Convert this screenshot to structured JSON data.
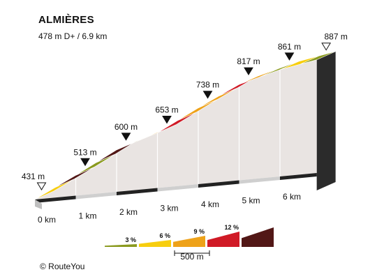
{
  "title": "ALMIÈRES",
  "subtitle": "478 m D+ / 6.9 km",
  "credit": "© RouteYou",
  "chart_data": {
    "type": "area",
    "title": "ALMIÈRES",
    "subtitle": "478 m D+ / 6.9 km",
    "x_unit": "km",
    "y_unit": "m",
    "xlim": [
      0,
      6.9
    ],
    "km_ticks": [
      {
        "km": 0,
        "label": "0 km"
      },
      {
        "km": 1,
        "label": "1 km"
      },
      {
        "km": 2,
        "label": "2 km"
      },
      {
        "km": 3,
        "label": "3 km"
      },
      {
        "km": 4,
        "label": "4 km"
      },
      {
        "km": 5,
        "label": "5 km"
      },
      {
        "km": 6,
        "label": "6 km"
      }
    ],
    "markers": [
      {
        "km": 0,
        "altitude": 431,
        "label": "431 m",
        "style": "open"
      },
      {
        "km": 1,
        "altitude": 513,
        "label": "513 m",
        "style": "filled"
      },
      {
        "km": 2,
        "altitude": 600,
        "label": "600 m",
        "style": "filled"
      },
      {
        "km": 3,
        "altitude": 653,
        "label": "653 m",
        "style": "filled"
      },
      {
        "km": 4,
        "altitude": 738,
        "label": "738 m",
        "style": "filled"
      },
      {
        "km": 5,
        "altitude": 817,
        "label": "817 m",
        "style": "filled"
      },
      {
        "km": 6,
        "altitude": 861,
        "label": "861 m",
        "style": "filled"
      },
      {
        "km": 6.9,
        "altitude": 887,
        "label": "887 m",
        "style": "open"
      }
    ],
    "segments": [
      {
        "from_km": 0.0,
        "to_km": 0.5,
        "gradient_class": 6
      },
      {
        "from_km": 0.5,
        "to_km": 1.0,
        "gradient_class": 15
      },
      {
        "from_km": 1.0,
        "to_km": 1.5,
        "gradient_class": 3
      },
      {
        "from_km": 1.5,
        "to_km": 2.0,
        "gradient_class": 15
      },
      {
        "from_km": 2.0,
        "to_km": 2.5,
        "gradient_class": 3
      },
      {
        "from_km": 2.5,
        "to_km": 3.0,
        "gradient_class": 9
      },
      {
        "from_km": 3.0,
        "to_km": 3.5,
        "gradient_class": 12
      },
      {
        "from_km": 3.5,
        "to_km": 4.0,
        "gradient_class": 9
      },
      {
        "from_km": 4.0,
        "to_km": 4.5,
        "gradient_class": 9
      },
      {
        "from_km": 4.5,
        "to_km": 5.0,
        "gradient_class": 12
      },
      {
        "from_km": 5.0,
        "to_km": 5.5,
        "gradient_class": 9
      },
      {
        "from_km": 5.5,
        "to_km": 6.0,
        "gradient_class": 3
      },
      {
        "from_km": 6.0,
        "to_km": 6.5,
        "gradient_class": 6
      },
      {
        "from_km": 6.5,
        "to_km": 6.9,
        "gradient_class": 3
      }
    ],
    "legend": {
      "items": [
        {
          "class": 3,
          "label": "3 %",
          "color": "#8a9a1e"
        },
        {
          "class": 6,
          "label": "6 %",
          "color": "#f7ce0f"
        },
        {
          "class": 9,
          "label": "9 %",
          "color": "#eea219"
        },
        {
          "class": 12,
          "label": "12 %",
          "color": "#d01a26"
        },
        {
          "class": 15,
          "label": "",
          "color": "#521716"
        }
      ],
      "scale_label": "500 m"
    }
  }
}
